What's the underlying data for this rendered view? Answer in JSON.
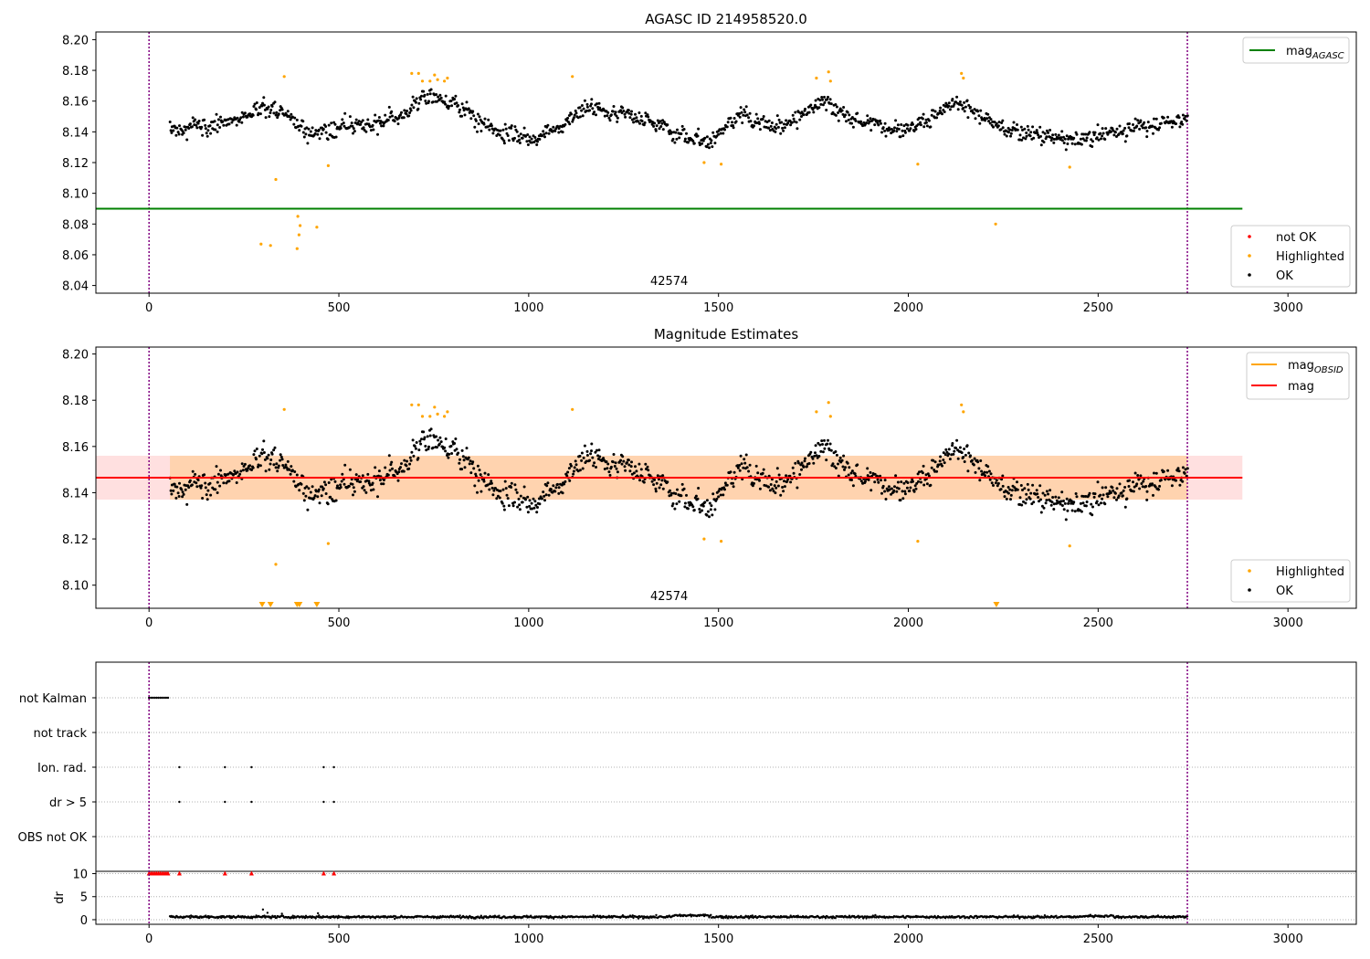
{
  "chart_data": [
    {
      "type": "scatter",
      "title": "AGASC ID 214958520.0",
      "xlim": [
        -140,
        3180
      ],
      "ylim": [
        8.035,
        8.205
      ],
      "xticks": [
        "0",
        "500",
        "1000",
        "1500",
        "2000",
        "2500",
        "3000"
      ],
      "yticks": [
        "8.04",
        "8.06",
        "8.08",
        "8.10",
        "8.12",
        "8.14",
        "8.16",
        "8.18",
        "8.20"
      ],
      "annotation": {
        "text": "42574",
        "x": 1370
      },
      "vertical_lines": [
        0,
        2735
      ],
      "reference_line": {
        "name": "mag_AGASC",
        "y": 8.09,
        "x_range": [
          -140,
          2880
        ],
        "color": "#008000"
      },
      "legend_lines": [
        {
          "label": "mag",
          "subscript": "AGASC",
          "color": "#008000"
        }
      ],
      "legend_points": [
        {
          "label": "not OK",
          "color": "#ff0000"
        },
        {
          "label": "Highlighted",
          "color": "#ffa500"
        },
        {
          "label": "OK",
          "color": "#000000"
        }
      ],
      "series": [
        {
          "name": "OK",
          "color": "#000000",
          "x_range": [
            55,
            2735
          ],
          "count": 1250,
          "trend_knots": [
            [
              55,
              8.142
            ],
            [
              200,
              8.146
            ],
            [
              330,
              8.156
            ],
            [
              420,
              8.14
            ],
            [
              560,
              8.145
            ],
            [
              680,
              8.15
            ],
            [
              720,
              8.164
            ],
            [
              790,
              8.16
            ],
            [
              900,
              8.142
            ],
            [
              1000,
              8.136
            ],
            [
              1080,
              8.142
            ],
            [
              1150,
              8.157
            ],
            [
              1280,
              8.15
            ],
            [
              1360,
              8.143
            ],
            [
              1470,
              8.133
            ],
            [
              1560,
              8.15
            ],
            [
              1650,
              8.142
            ],
            [
              1780,
              8.16
            ],
            [
              1850,
              8.148
            ],
            [
              2000,
              8.141
            ],
            [
              2130,
              8.16
            ],
            [
              2250,
              8.142
            ],
            [
              2430,
              8.134
            ],
            [
              2560,
              8.141
            ],
            [
              2735,
              8.149
            ]
          ]
        },
        {
          "name": "Highlighted",
          "color": "#ffa500",
          "points": [
            [
              295,
              8.067
            ],
            [
              320,
              8.066
            ],
            [
              334,
              8.109
            ],
            [
              356,
              8.176
            ],
            [
              390,
              8.064
            ],
            [
              392,
              8.085
            ],
            [
              395,
              8.073
            ],
            [
              398,
              8.079
            ],
            [
              442,
              8.078
            ],
            [
              472,
              8.118
            ],
            [
              692,
              8.178
            ],
            [
              710,
              8.178
            ],
            [
              720,
              8.173
            ],
            [
              740,
              8.173
            ],
            [
              752,
              8.177
            ],
            [
              760,
              8.174
            ],
            [
              778,
              8.173
            ],
            [
              786,
              8.175
            ],
            [
              1115,
              8.176
            ],
            [
              1462,
              8.12
            ],
            [
              1507,
              8.119
            ],
            [
              1758,
              8.175
            ],
            [
              1790,
              8.179
            ],
            [
              1795,
              8.173
            ],
            [
              2025,
              8.119
            ],
            [
              2140,
              8.178
            ],
            [
              2145,
              8.175
            ],
            [
              2230,
              8.08
            ],
            [
              2425,
              8.117
            ]
          ]
        }
      ]
    },
    {
      "type": "scatter",
      "title": "Magnitude Estimates",
      "xlim": [
        -140,
        3180
      ],
      "ylim": [
        8.09,
        8.203
      ],
      "xticks": [
        "0",
        "500",
        "1000",
        "1500",
        "2000",
        "2500",
        "3000"
      ],
      "yticks": [
        "8.10",
        "8.12",
        "8.14",
        "8.16",
        "8.18",
        "8.20"
      ],
      "annotation": {
        "text": "42574",
        "x": 1370
      },
      "vertical_lines": [
        0,
        2735
      ],
      "band": {
        "y_low": 8.137,
        "y_high": 8.156,
        "x_range": [
          -140,
          2880
        ]
      },
      "mag_line": {
        "name": "mag",
        "y": 8.1465,
        "color": "#ff0000"
      },
      "mag_obsid_line": {
        "name": "mag_OBSID",
        "y": 8.1465,
        "x_range": [
          55,
          2735
        ],
        "color": "#ffa500"
      },
      "clipped_markers_x": [
        298,
        320,
        390,
        396,
        442,
        2232
      ],
      "legend_lines": [
        {
          "label": "mag",
          "subscript": "OBSID",
          "color": "#ffa500"
        },
        {
          "label": "mag",
          "subscript": "",
          "color": "#ff0000"
        }
      ],
      "legend_points": [
        {
          "label": "Highlighted",
          "color": "#ffa500"
        },
        {
          "label": "OK",
          "color": "#000000"
        }
      ]
    },
    {
      "type": "scatter",
      "xlim": [
        -140,
        3180
      ],
      "xticks": [
        "0",
        "500",
        "1000",
        "1500",
        "2000",
        "2500",
        "3000"
      ],
      "vertical_lines": [
        0,
        2735
      ],
      "flag_rows": [
        {
          "label": "not Kalman",
          "x": [
            0,
            5,
            10,
            15,
            20,
            25,
            30,
            35,
            40,
            45,
            50
          ]
        },
        {
          "label": "not track",
          "x": []
        },
        {
          "label": "Ion. rad.",
          "x": [
            80,
            200,
            270,
            460,
            487
          ]
        },
        {
          "label": "dr > 5",
          "x": [
            80,
            200,
            270,
            460,
            487
          ]
        },
        {
          "label": "OBS not OK",
          "x": []
        }
      ],
      "dr_panel": {
        "ylabel": "dr",
        "yticks": [
          "0",
          "5",
          "10"
        ],
        "ylim": [
          -1,
          10.5
        ],
        "points_x_range": [
          55,
          2735
        ],
        "count": 1250,
        "typical": 0.6,
        "clipped_x": [
          0,
          5,
          10,
          15,
          20,
          25,
          30,
          35,
          40,
          45,
          50,
          80,
          200,
          270,
          460,
          487
        ]
      }
    }
  ]
}
